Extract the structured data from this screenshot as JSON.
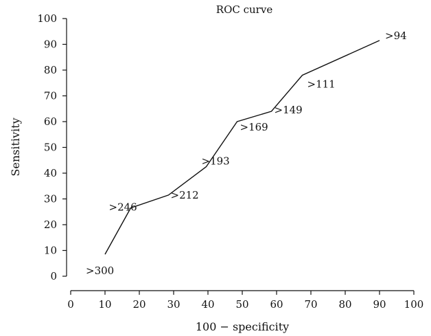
{
  "chart_data": {
    "type": "line",
    "title": "ROC curve",
    "xlabel": "100 − specificity",
    "ylabel": "Sensitivity",
    "xlim": [
      0,
      100
    ],
    "ylim": [
      0,
      100
    ],
    "xticks": [
      0,
      10,
      20,
      30,
      40,
      50,
      60,
      70,
      80,
      90,
      100
    ],
    "yticks": [
      0,
      10,
      20,
      30,
      40,
      50,
      60,
      70,
      80,
      90,
      100
    ],
    "grid": false,
    "series": [
      {
        "points": [
          {
            "x": 10,
            "y": 8.5,
            "label": ">300"
          },
          {
            "x": 17.5,
            "y": 26.5,
            "label": ">246"
          },
          {
            "x": 28.5,
            "y": 31.5,
            "label": ">212"
          },
          {
            "x": 39.5,
            "y": 42.5,
            "label": ">193"
          },
          {
            "x": 48.5,
            "y": 60,
            "label": ">169"
          },
          {
            "x": 58.5,
            "y": 64,
            "label": ">149"
          },
          {
            "x": 67.5,
            "y": 78,
            "label": ">111"
          },
          {
            "x": 90,
            "y": 91.5,
            "label": ">94"
          }
        ]
      }
    ]
  }
}
